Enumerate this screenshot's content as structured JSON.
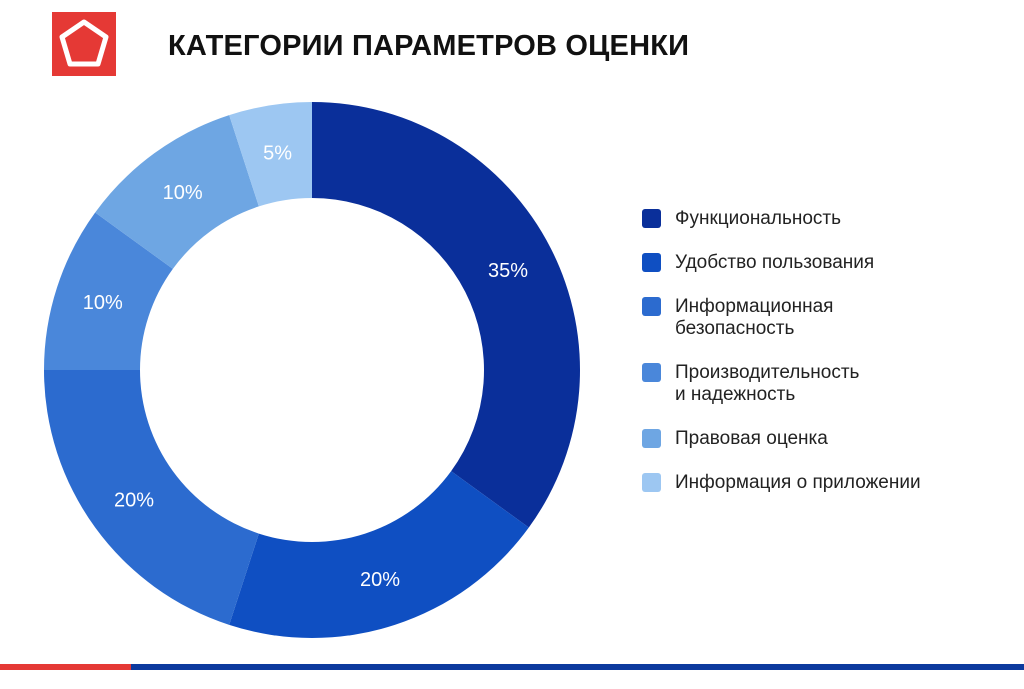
{
  "header": {
    "title": "КАТЕГОРИИ ПАРАМЕТРОВ ОЦЕНКИ",
    "logo_icon": "pentagon-icon",
    "logo_color": "#e53935"
  },
  "chart_data": {
    "type": "pie",
    "variant": "donut",
    "title": "КАТЕГОРИИ ПАРАМЕТРОВ ОЦЕНКИ",
    "categories": [
      "Функциональность",
      "Удобство пользования",
      "Информационная безопасность",
      "Производительность и надежность",
      "Правовая оценка",
      "Информация о приложении"
    ],
    "values": [
      35,
      20,
      20,
      10,
      10,
      5
    ],
    "labels": [
      "35%",
      "20%",
      "20%",
      "10%",
      "10%",
      "5%"
    ],
    "colors": [
      "#0a2f9a",
      "#0f4fc2",
      "#2c6bcf",
      "#4a87da",
      "#6ea6e3",
      "#9dc7f2"
    ],
    "start_angle": "12 o'clock",
    "direction": "clockwise",
    "legend_position": "right"
  },
  "legend": {
    "items": [
      {
        "label": "Функциональность",
        "color": "#0a2f9a"
      },
      {
        "label": "Удобство пользования",
        "color": "#0f4fc2"
      },
      {
        "label": "Информационная\nбезопасность",
        "color": "#2c6bcf"
      },
      {
        "label": "Производительность\nи надежность",
        "color": "#4a87da"
      },
      {
        "label": "Правовая оценка",
        "color": "#6ea6e3"
      },
      {
        "label": "Информация о приложении",
        "color": "#9dc7f2"
      }
    ]
  },
  "footer": {
    "left_color": "#e53935",
    "right_color": "#0d3a9e"
  }
}
